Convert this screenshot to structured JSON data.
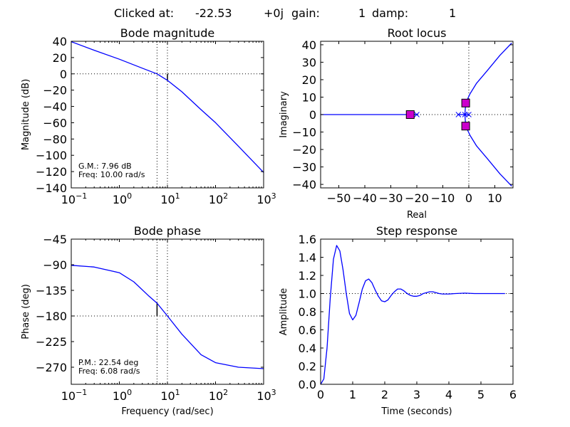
{
  "header": {
    "clicked_label": "Clicked at:",
    "clicked_real": "-22.53",
    "clicked_imag": "+0j",
    "gain_label": "gain:",
    "gain_value": "1",
    "damp_label": "damp:",
    "damp_value": "1"
  },
  "chart_data": [
    {
      "id": "bode_mag",
      "type": "line",
      "title": "Bode magnitude",
      "xlabel": "",
      "ylabel": "Magnitude (dB)",
      "xscale": "log",
      "xlim": [
        0.1,
        1000
      ],
      "ylim": [
        -140,
        40
      ],
      "yticks": [
        40,
        20,
        0,
        -20,
        -40,
        -60,
        -80,
        -100,
        -120,
        -140
      ],
      "xticks": [
        0.1,
        1,
        10,
        100,
        1000
      ],
      "series": [
        {
          "color": "#0000ff",
          "points": [
            [
              0.1,
              39.5
            ],
            [
              0.3,
              29
            ],
            [
              1,
              18
            ],
            [
              3,
              7
            ],
            [
              6.08,
              0
            ],
            [
              10,
              -7.96
            ],
            [
              20,
              -22
            ],
            [
              50,
              -44
            ],
            [
              100,
              -60
            ],
            [
              300,
              -89
            ],
            [
              1000,
              -121
            ]
          ]
        }
      ],
      "markers": {
        "vlines_dotted": [
          6.08,
          10
        ],
        "hline_dotted": 0,
        "margin_bar": {
          "x": 10,
          "from": 0,
          "to": -7.96
        }
      },
      "annotation": [
        "G.M.: 7.96 dB",
        "Freq: 10.00 rad/s"
      ]
    },
    {
      "id": "root_locus",
      "type": "line",
      "title": "Root locus",
      "xlabel": "Real",
      "ylabel": "Imaginary",
      "xlim": [
        -57,
        17
      ],
      "ylim": [
        -42,
        42
      ],
      "xticks": [
        -50,
        -40,
        -30,
        -20,
        -10,
        0,
        10
      ],
      "yticks": [
        40,
        30,
        20,
        10,
        0,
        -10,
        -20,
        -30,
        -40
      ],
      "branches": [
        {
          "color": "#0000ff",
          "points": [
            [
              -57,
              0
            ],
            [
              -20,
              0
            ]
          ]
        },
        {
          "color": "#0000ff",
          "points": [
            [
              -20,
              0
            ],
            [
              -22.53,
              0
            ]
          ]
        },
        {
          "color": "#0000ff",
          "points": [
            [
              -4,
              0
            ],
            [
              -1.5,
              0
            ]
          ]
        },
        {
          "color": "#0000ff",
          "points": [
            [
              0,
              0
            ],
            [
              -1.5,
              0
            ]
          ]
        },
        {
          "color": "#0000ff",
          "points": [
            [
              -1.5,
              0
            ],
            [
              -1.2,
              6.6
            ],
            [
              0.5,
              12
            ],
            [
              3,
              18
            ],
            [
              7,
              25
            ],
            [
              12,
              34
            ],
            [
              16.5,
              41
            ]
          ]
        },
        {
          "color": "#0000ff",
          "points": [
            [
              -1.5,
              0
            ],
            [
              -1.2,
              -6.6
            ],
            [
              0.5,
              -12
            ],
            [
              3,
              -18
            ],
            [
              7,
              -25
            ],
            [
              12,
              -34
            ],
            [
              16.5,
              -41
            ]
          ]
        }
      ],
      "poles": [
        [
          -20,
          0
        ],
        [
          -4,
          0
        ],
        [
          -1.5,
          0
        ],
        [
          0,
          0
        ]
      ],
      "selected_roots": [
        [
          -22.53,
          0
        ],
        [
          -1.2,
          6.6
        ],
        [
          -1.2,
          -6.6
        ]
      ],
      "selected_color": "#cc00cc"
    },
    {
      "id": "bode_phase",
      "type": "line",
      "title": "Bode phase",
      "xlabel": "Frequency (rad/sec)",
      "ylabel": "Phase (deg)",
      "xscale": "log",
      "xlim": [
        0.1,
        1000
      ],
      "ylim": [
        -300,
        -45
      ],
      "yticks": [
        -45,
        -90,
        -135,
        -180,
        -225,
        -270
      ],
      "xticks": [
        0.1,
        1,
        10,
        100,
        1000
      ],
      "series": [
        {
          "color": "#0000ff",
          "points": [
            [
              0.1,
              -91
            ],
            [
              0.3,
              -94
            ],
            [
              1,
              -104
            ],
            [
              2,
              -120
            ],
            [
              4,
              -144
            ],
            [
              6.08,
              -157.5
            ],
            [
              10,
              -180
            ],
            [
              20,
              -212
            ],
            [
              50,
              -248
            ],
            [
              100,
              -262
            ],
            [
              300,
              -270
            ],
            [
              1000,
              -272.5
            ]
          ]
        }
      ],
      "markers": {
        "vlines_dotted": [
          6.08,
          10
        ],
        "hline_dotted": -180,
        "margin_bar": {
          "x": 6.08,
          "from": -180,
          "to": -157.5
        }
      },
      "annotation": [
        "P.M.: 22.54 deg",
        "Freq: 6.08 rad/s"
      ]
    },
    {
      "id": "step",
      "type": "line",
      "title": "Step response",
      "xlabel": "Time (seconds)",
      "ylabel": "Amplitude",
      "xlim": [
        0,
        6
      ],
      "ylim": [
        0,
        1.6
      ],
      "xticks": [
        0,
        1,
        2,
        3,
        4,
        5,
        6
      ],
      "yticks": [
        0.0,
        0.2,
        0.4,
        0.6,
        0.8,
        1.0,
        1.2,
        1.4,
        1.6
      ],
      "ytick_labels": [
        "0.0",
        "0.2",
        "0.4",
        "0.6",
        "0.8",
        "1.0",
        "1.2",
        "1.4",
        "1.6"
      ],
      "reference_line": 1.0,
      "series": [
        {
          "color": "#0000ff",
          "points": [
            [
              0,
              0
            ],
            [
              0.1,
              0.06
            ],
            [
              0.2,
              0.4
            ],
            [
              0.3,
              0.95
            ],
            [
              0.4,
              1.38
            ],
            [
              0.5,
              1.53
            ],
            [
              0.6,
              1.47
            ],
            [
              0.7,
              1.26
            ],
            [
              0.8,
              1.0
            ],
            [
              0.9,
              0.78
            ],
            [
              1.0,
              0.71
            ],
            [
              1.1,
              0.76
            ],
            [
              1.2,
              0.9
            ],
            [
              1.3,
              1.05
            ],
            [
              1.4,
              1.14
            ],
            [
              1.5,
              1.16
            ],
            [
              1.6,
              1.12
            ],
            [
              1.7,
              1.04
            ],
            [
              1.8,
              0.97
            ],
            [
              1.9,
              0.92
            ],
            [
              2.0,
              0.91
            ],
            [
              2.1,
              0.93
            ],
            [
              2.2,
              0.98
            ],
            [
              2.3,
              1.02
            ],
            [
              2.4,
              1.05
            ],
            [
              2.5,
              1.05
            ],
            [
              2.6,
              1.03
            ],
            [
              2.7,
              1.0
            ],
            [
              2.8,
              0.98
            ],
            [
              2.9,
              0.97
            ],
            [
              3.0,
              0.97
            ],
            [
              3.1,
              0.98
            ],
            [
              3.2,
              1.0
            ],
            [
              3.3,
              1.01
            ],
            [
              3.4,
              1.02
            ],
            [
              3.5,
              1.02
            ],
            [
              3.6,
              1.01
            ],
            [
              3.7,
              1.0
            ],
            [
              3.8,
              0.995
            ],
            [
              4.0,
              0.995
            ],
            [
              4.2,
              1.0
            ],
            [
              4.5,
              1.005
            ],
            [
              4.8,
              1.0
            ],
            [
              5.2,
              1.0
            ],
            [
              5.75,
              1.0
            ]
          ]
        }
      ]
    }
  ]
}
